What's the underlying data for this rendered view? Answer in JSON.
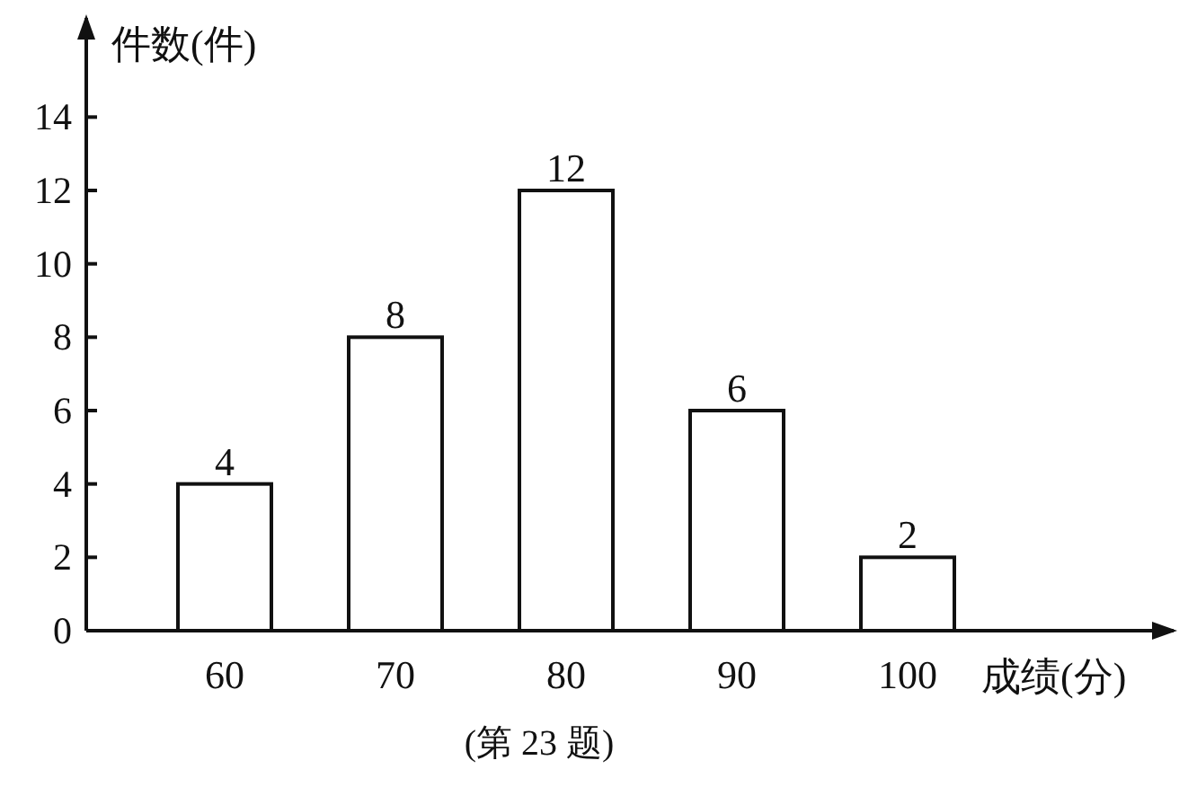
{
  "chart_data": {
    "type": "bar",
    "ylabel": "件数(件)",
    "xlabel": "成绩(分)",
    "categories": [
      "60",
      "70",
      "80",
      "90",
      "100"
    ],
    "values": [
      4,
      8,
      12,
      6,
      2
    ],
    "color": "#ffffff",
    "data_labels": true,
    "ylim": [
      0,
      16.8
    ],
    "yticks": [
      0,
      2,
      4,
      6,
      8,
      10,
      12,
      14
    ],
    "grid": false,
    "annotations": [
      "(第 23 题)"
    ]
  }
}
